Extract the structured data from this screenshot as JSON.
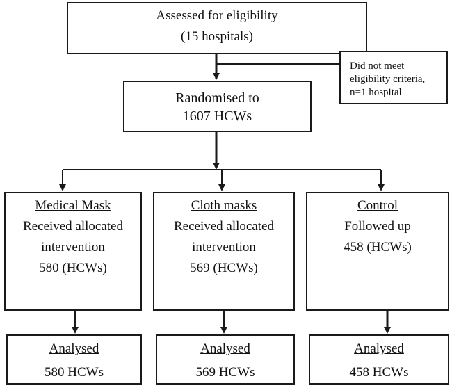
{
  "assessed": {
    "line1": "Assessed for eligibility",
    "line2": "(15 hospitals)"
  },
  "excluded": {
    "line1": "Did not meet",
    "line2": "eligibility criteria,",
    "line3": "n=1 hospital"
  },
  "randomised": {
    "line1": "Randomised to",
    "line2": "1607 HCWs"
  },
  "arms": [
    {
      "title": "Medical Mask",
      "line1": "Received allocated",
      "line2": "intervention",
      "line3": "580 (HCWs)"
    },
    {
      "title": "Cloth masks",
      "line1": "Received allocated",
      "line2": "intervention",
      "line3": "569 (HCWs)"
    },
    {
      "title": "Control",
      "line1": "Followed up",
      "line2": "458 (HCWs)"
    }
  ],
  "analysed": [
    {
      "title": "Analysed",
      "value": "580 HCWs"
    },
    {
      "title": "Analysed",
      "value": "569 HCWs"
    },
    {
      "title": "Analysed",
      "value": "458 HCWs"
    }
  ],
  "colors": {
    "stroke": "#1a1a1a",
    "background": "#ffffff"
  }
}
